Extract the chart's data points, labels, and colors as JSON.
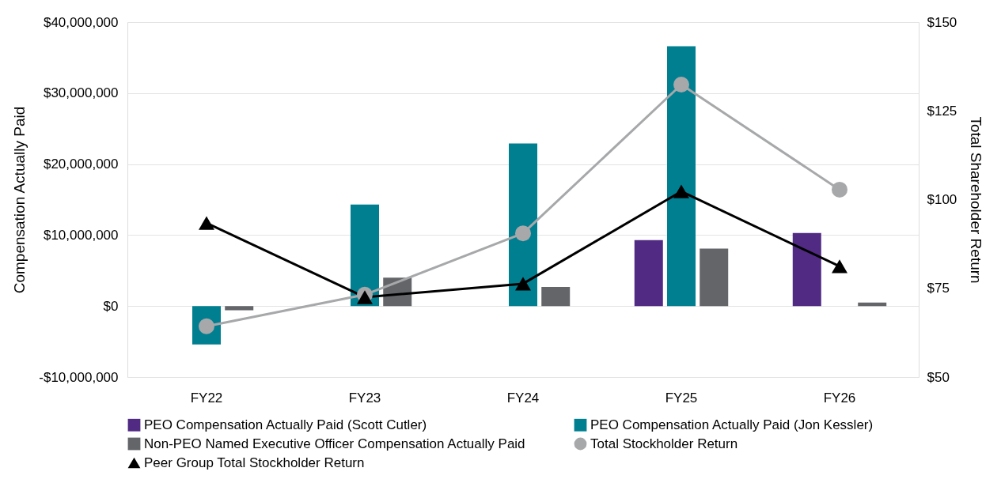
{
  "chart_data": {
    "type": "bar",
    "ylabel": "Compensation Actually Paid",
    "y2label": "Total Shareholder Return",
    "categories": [
      "FY22",
      "FY23",
      "FY24",
      "FY25",
      "FY26"
    ],
    "series": [
      {
        "name": "PEO Compensation Actually Paid (Scott Cutler)",
        "color": "#512a84",
        "values": [
          null,
          null,
          null,
          9300000,
          10300000
        ]
      },
      {
        "name": "PEO Compensation Actually Paid (Jon Kessler)",
        "color": "#007f91",
        "values": [
          -5400000,
          14300000,
          22900000,
          36600000,
          null
        ]
      },
      {
        "name": "Non-PEO Named Executive Officer Compensation Actually Paid",
        "color": "#636569",
        "values": [
          -600000,
          4000000,
          2700000,
          8100000,
          500000
        ]
      },
      {
        "name": "Total Stockholder Return",
        "type": "line",
        "axis": "y2",
        "marker": "circle",
        "color": "#a7a8aa",
        "values": [
          64.3,
          73.2,
          90.5,
          132.4,
          102.8
        ]
      },
      {
        "name": "Peer Group Total Stockholder Return",
        "type": "line",
        "axis": "y2",
        "marker": "triangle",
        "color": "#000000",
        "values": [
          93.4,
          72.5,
          76.3,
          102.3,
          81.2
        ]
      }
    ],
    "ylim": [
      -10000000,
      40000000
    ],
    "yticks": [
      {
        "value": -10000000,
        "label": "-$10,000,000"
      },
      {
        "value": 0,
        "label": "$0"
      },
      {
        "value": 10000000,
        "label": "$10,000,000"
      },
      {
        "value": 20000000,
        "label": "$20,000,000"
      },
      {
        "value": 30000000,
        "label": "$30,000,000"
      },
      {
        "value": 40000000,
        "label": "$40,000,000"
      }
    ],
    "y2lim": [
      50,
      150
    ],
    "y2ticks": [
      {
        "value": 50,
        "label": "$50"
      },
      {
        "value": 75,
        "label": "$75"
      },
      {
        "value": 100,
        "label": "$100"
      },
      {
        "value": 125,
        "label": "$125"
      },
      {
        "value": 150,
        "label": "$150"
      }
    ],
    "grid": "y",
    "legend": "bottom"
  }
}
